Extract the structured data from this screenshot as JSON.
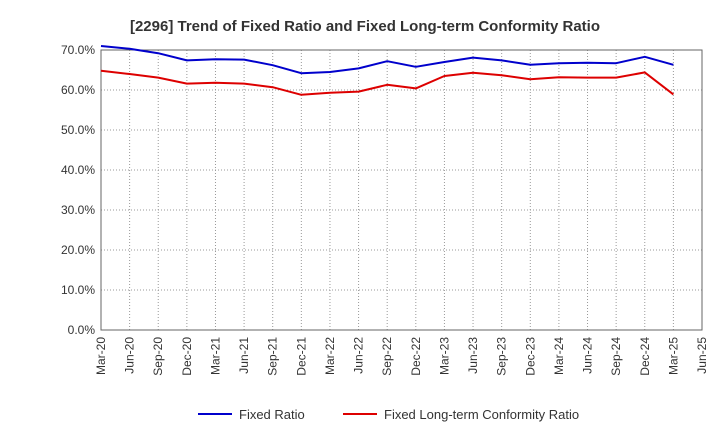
{
  "chart_data": {
    "type": "line",
    "title": "[2296]  Trend of Fixed Ratio and Fixed Long-term Conformity Ratio",
    "xlabel": "",
    "ylabel": "",
    "ylim": [
      0,
      70
    ],
    "yticks": [
      "0.0%",
      "10.0%",
      "20.0%",
      "30.0%",
      "40.0%",
      "50.0%",
      "60.0%",
      "70.0%"
    ],
    "categories": [
      "Mar-20",
      "Jun-20",
      "Sep-20",
      "Dec-20",
      "Mar-21",
      "Jun-21",
      "Sep-21",
      "Dec-21",
      "Mar-22",
      "Jun-22",
      "Sep-22",
      "Dec-22",
      "Mar-23",
      "Jun-23",
      "Sep-23",
      "Dec-23",
      "Mar-24",
      "Jun-24",
      "Sep-24",
      "Dec-24",
      "Mar-25",
      "Jun-25"
    ],
    "series": [
      {
        "name": "Fixed Ratio",
        "color": "#0000cc",
        "values": [
          71.0,
          70.3,
          69.2,
          67.4,
          67.7,
          67.6,
          66.2,
          64.2,
          64.5,
          65.4,
          67.2,
          65.8,
          67.0,
          68.1,
          67.4,
          66.3,
          66.7,
          66.8,
          66.7,
          68.3,
          66.3,
          null
        ]
      },
      {
        "name": "Fixed Long-term Conformity Ratio",
        "color": "#dd0000",
        "values": [
          64.8,
          64.0,
          63.1,
          61.6,
          61.8,
          61.6,
          60.7,
          58.8,
          59.3,
          59.6,
          61.3,
          60.4,
          63.5,
          64.3,
          63.7,
          62.7,
          63.2,
          63.1,
          63.1,
          64.4,
          58.9,
          null
        ]
      }
    ],
    "grid": true,
    "legend": "bottom"
  }
}
